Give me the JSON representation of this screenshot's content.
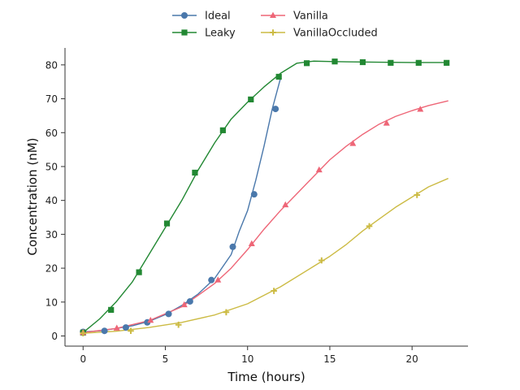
{
  "chart_data": {
    "type": "line",
    "title": "",
    "xlabel": "Time (hours)",
    "ylabel": "Concentration (nM)",
    "xlim": [
      -1.1,
      23.4
    ],
    "ylim": [
      -3,
      85
    ],
    "xticks": [
      0,
      5,
      10,
      15,
      20
    ],
    "yticks": [
      0,
      10,
      20,
      30,
      40,
      50,
      60,
      70,
      80
    ],
    "grid": false,
    "legend_position": "top-center",
    "series": [
      {
        "name": "Ideal",
        "color": "#4a78ab",
        "marker": "circle",
        "line_x": [
          0,
          1,
          2,
          3,
          4,
          5,
          6,
          7,
          8,
          9,
          9.5,
          10,
          10.5,
          11,
          11.5,
          12
        ],
        "line_y": [
          1.2,
          1.5,
          2.2,
          3.0,
          4.3,
          6.3,
          9.0,
          12.4,
          17.0,
          24.0,
          31.0,
          37.0,
          46.0,
          56.0,
          67.0,
          76.0
        ],
        "marker_x": [
          0,
          1.3,
          2.6,
          3.9,
          5.2,
          6.5,
          7.8,
          9.1,
          10.4,
          11.7
        ],
        "marker_y": [
          1.2,
          1.5,
          2.5,
          4.0,
          6.5,
          10.2,
          16.5,
          26.3,
          41.8,
          67.0
        ]
      },
      {
        "name": "Leaky",
        "color": "#228833",
        "marker": "square",
        "line_x": [
          0,
          1,
          2,
          3,
          4,
          5,
          6,
          7,
          8,
          9,
          10,
          11,
          12,
          13,
          14,
          15,
          16,
          18,
          20,
          22
        ],
        "line_y": [
          1.0,
          5.0,
          10.0,
          16.0,
          24.0,
          32.0,
          40.0,
          49.0,
          57.0,
          64.0,
          69.0,
          73.5,
          77.5,
          80.5,
          81.1,
          81.0,
          80.9,
          80.8,
          80.7,
          80.7
        ],
        "marker_x": [
          0,
          1.7,
          3.4,
          5.1,
          6.8,
          8.5,
          10.2,
          11.9,
          13.6,
          15.3,
          17.0,
          18.7,
          20.4,
          22.1
        ],
        "marker_y": [
          1.0,
          7.7,
          18.8,
          33.2,
          48.2,
          60.7,
          69.8,
          76.5,
          80.5,
          81.0,
          80.8,
          80.6,
          80.6,
          80.6
        ]
      },
      {
        "name": "Vanilla",
        "color": "#ee6677",
        "marker": "triangle",
        "line_x": [
          0,
          2,
          4,
          6,
          7,
          8,
          9,
          10,
          11,
          12,
          13,
          14,
          15,
          16,
          17,
          18,
          19,
          20,
          21,
          22.2
        ],
        "line_y": [
          1.0,
          2.2,
          4.5,
          8.6,
          12.0,
          15.5,
          20.0,
          25.5,
          31.5,
          37.0,
          42.0,
          47.0,
          52.0,
          56.0,
          59.5,
          62.5,
          64.8,
          66.5,
          68.0,
          69.4
        ],
        "marker_x": [
          0,
          2.05,
          4.1,
          6.15,
          8.2,
          10.25,
          12.3,
          14.35,
          16.4,
          18.45,
          20.5
        ],
        "marker_y": [
          1.0,
          2.3,
          4.6,
          9.2,
          16.5,
          27.2,
          38.7,
          49.0,
          56.8,
          62.8,
          66.9
        ]
      },
      {
        "name": "VanillaOccluded",
        "color": "#ccbb44",
        "marker": "plus",
        "line_x": [
          0,
          2,
          4,
          6,
          8,
          10,
          12,
          14,
          15,
          16,
          17,
          18,
          19,
          20,
          21,
          22.2
        ],
        "line_y": [
          0.8,
          1.4,
          2.5,
          4.0,
          6.2,
          9.5,
          14.5,
          20.5,
          23.5,
          27.0,
          31.0,
          34.5,
          38.0,
          41.0,
          44.0,
          46.5
        ],
        "marker_x": [
          0,
          2.9,
          5.8,
          8.7,
          11.6,
          14.5,
          17.4,
          20.3
        ],
        "marker_y": [
          0.8,
          1.5,
          3.3,
          7.0,
          13.3,
          22.3,
          32.4,
          41.6
        ]
      }
    ]
  }
}
